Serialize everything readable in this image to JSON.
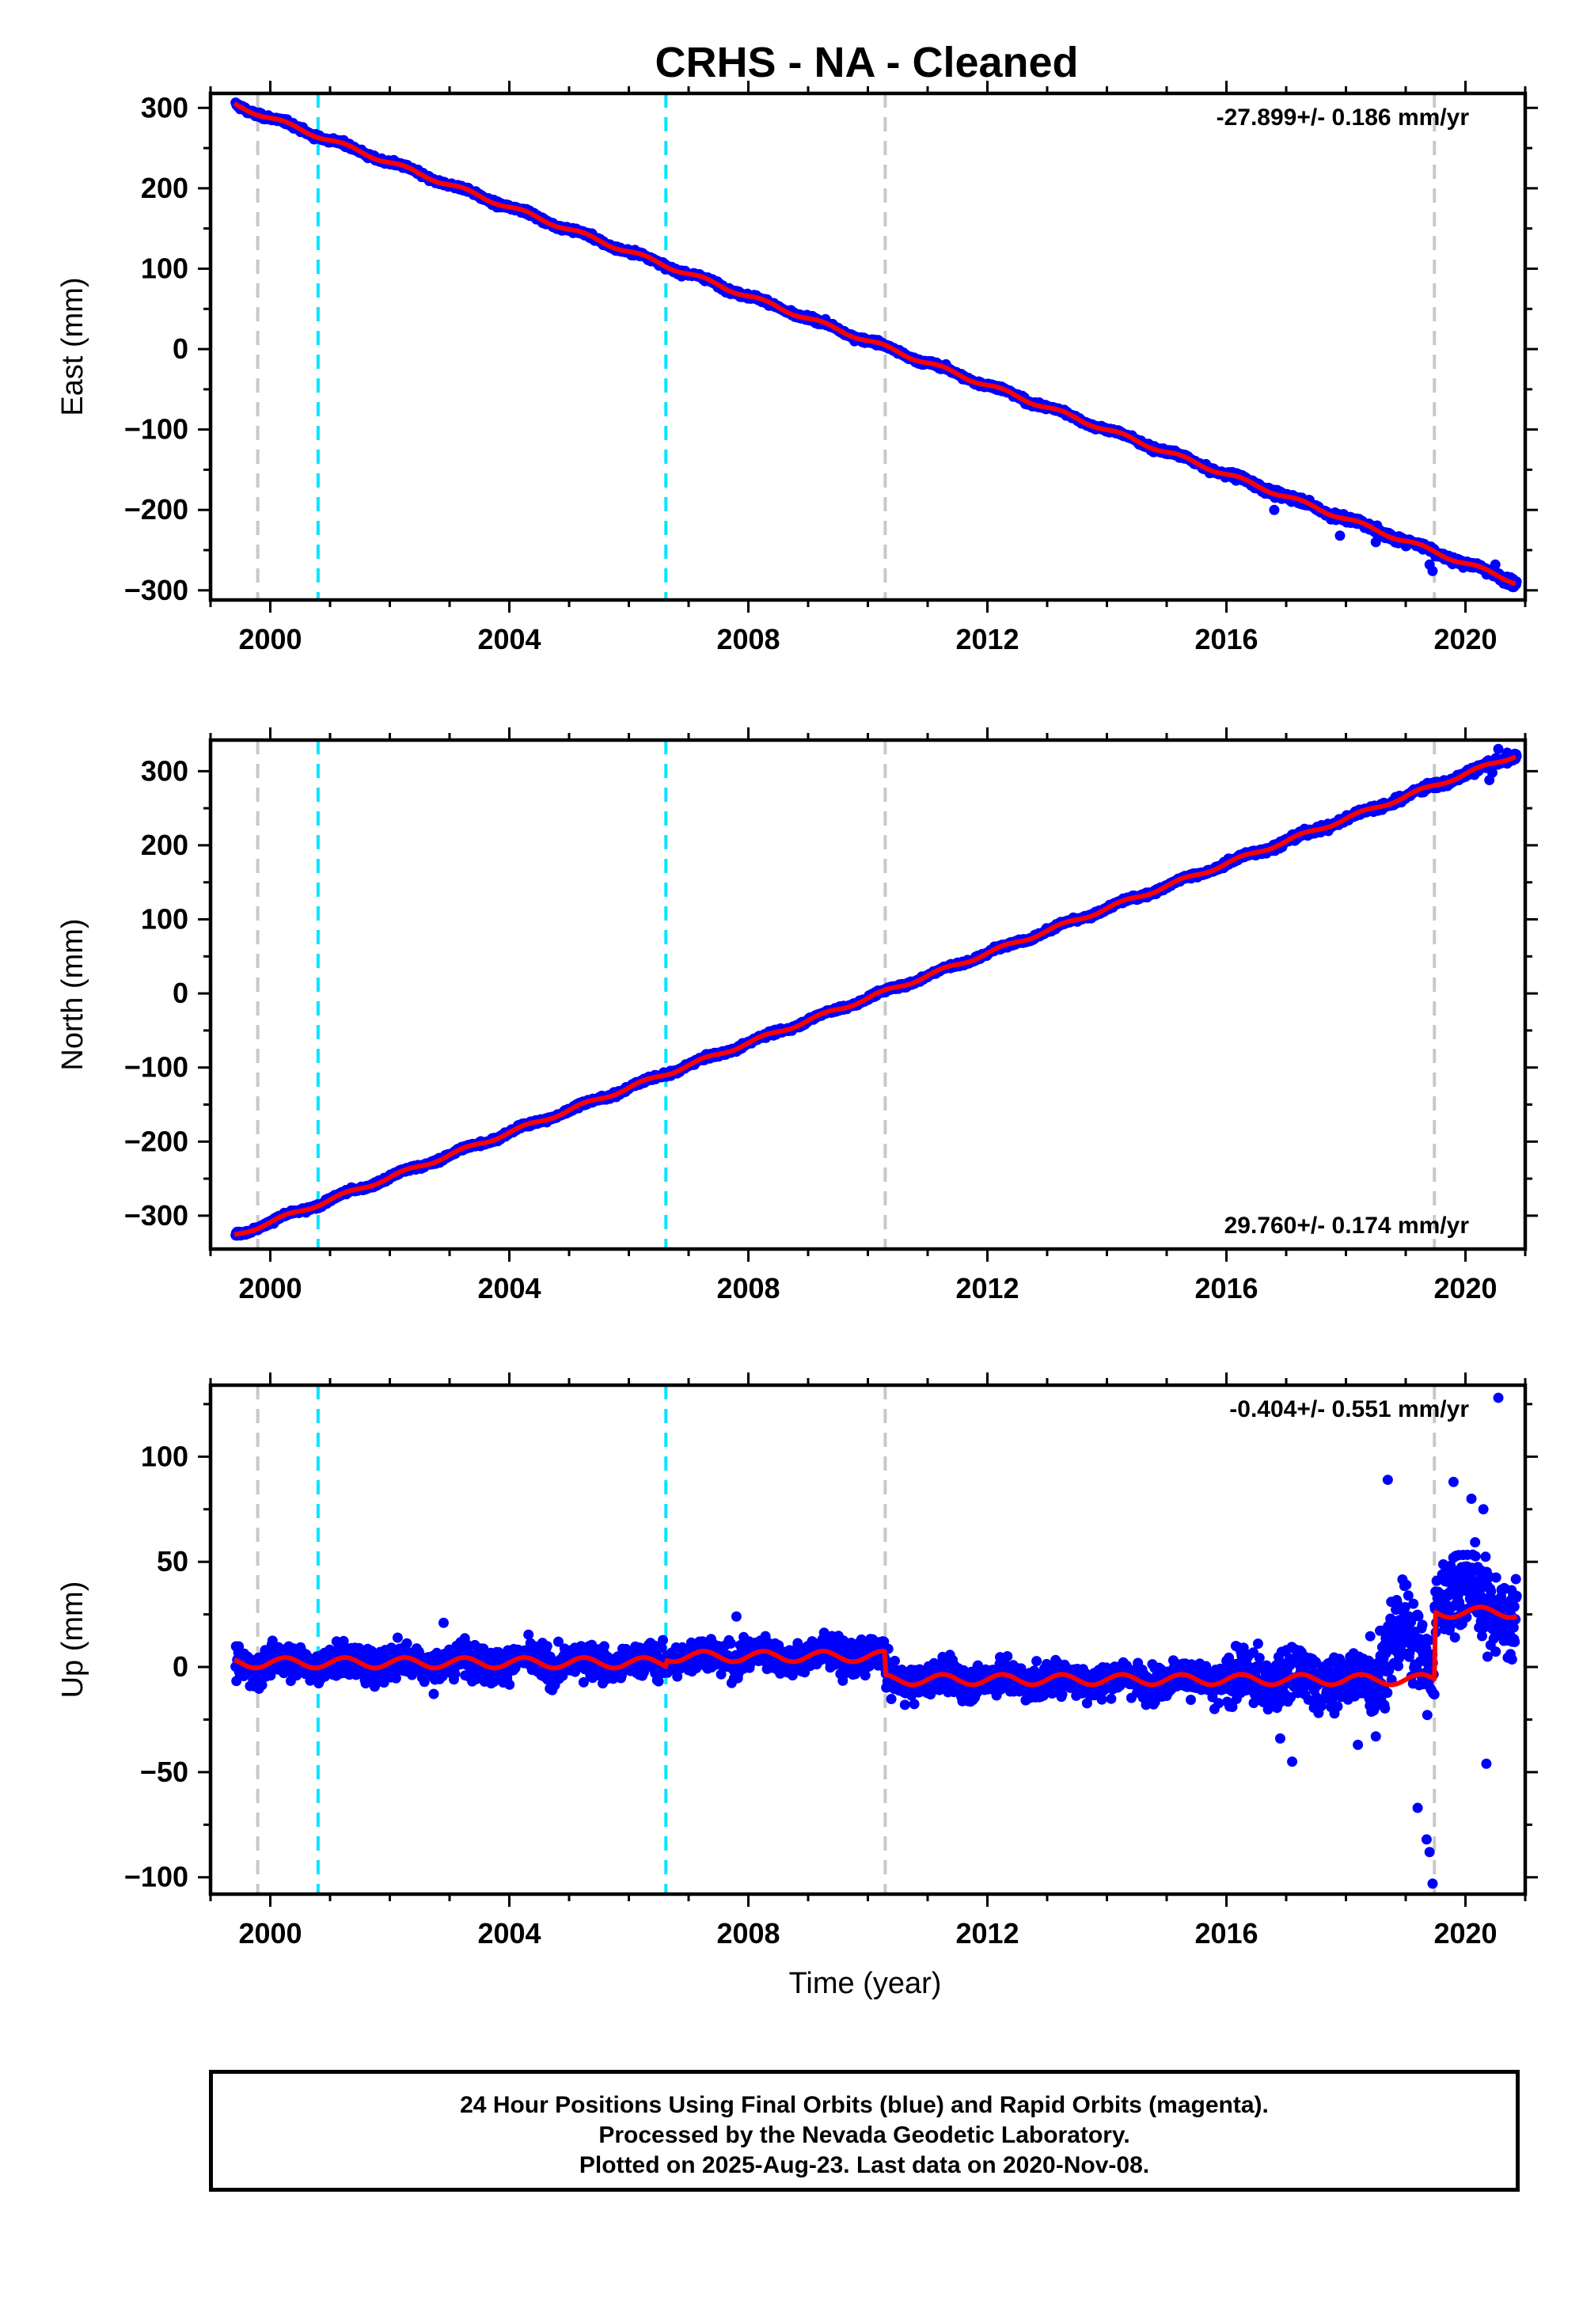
{
  "figure": {
    "title": "CRHS  - NA - Cleaned",
    "xlabel": "Time (year)",
    "footer": [
      "24 Hour Positions Using Final Orbits (blue) and Rapid Orbits (magenta).",
      "Processed by the Nevada Geodetic Laboratory.",
      "Plotted on 2025-Aug-23. Last data on 2020-Nov-08."
    ],
    "colors": {
      "final_orbits": "#0000ff",
      "model_fit": "#ff0000",
      "gray_events": "#c8c8c8",
      "cyan_events": "#00e5ff"
    }
  },
  "chart_data": [
    {
      "type": "scatter",
      "component": "East",
      "ylabel": "East (mm)",
      "rate_label": "-27.899+/- 0.186 mm/yr",
      "rate_position": "top-right",
      "xlim": [
        1999.0,
        2021.0
      ],
      "ylim": [
        -312,
        318
      ],
      "xticks": [
        2000,
        2004,
        2008,
        2012,
        2016,
        2020
      ],
      "yticks": [
        -300,
        -200,
        -100,
        0,
        100,
        200,
        300
      ],
      "ytick_labels": [
        "−300",
        "−200",
        "−100",
        "0",
        "100",
        "200",
        "300"
      ],
      "gray_lines": [
        1999.79,
        2010.29,
        2019.48
      ],
      "cyan_lines": [
        2000.8,
        2006.62
      ],
      "fit": {
        "x": [
          1999.4,
          2020.85
        ],
        "y": [
          304,
          -290
        ]
      },
      "outliers": [
        [
          2016.8,
          -200
        ],
        [
          2017.9,
          -232
        ],
        [
          2018.5,
          -240
        ],
        [
          2019.4,
          -268
        ],
        [
          2019.45,
          -276
        ],
        [
          2019.9,
          -262
        ],
        [
          2020.5,
          -268
        ],
        [
          2020.7,
          -283
        ],
        [
          2020.8,
          -296
        ]
      ]
    },
    {
      "type": "scatter",
      "component": "North",
      "ylabel": "North (mm)",
      "rate_label": "29.760+/- 0.174 mm/yr",
      "rate_position": "bottom-right",
      "xlim": [
        1999.0,
        2021.0
      ],
      "ylim": [
        -345,
        342
      ],
      "xticks": [
        2000,
        2004,
        2008,
        2012,
        2016,
        2020
      ],
      "yticks": [
        -300,
        -200,
        -100,
        0,
        100,
        200,
        300
      ],
      "ytick_labels": [
        "−300",
        "−200",
        "−100",
        "0",
        "100",
        "200",
        "300"
      ],
      "gray_lines": [
        1999.79,
        2010.29,
        2019.48
      ],
      "cyan_lines": [
        2000.8,
        2006.62
      ],
      "fit": {
        "x": [
          1999.4,
          2020.85
        ],
        "y": [
          -327,
          322
        ]
      },
      "outliers": [
        [
          2020.15,
          295
        ],
        [
          2020.3,
          305
        ],
        [
          2020.4,
          288
        ],
        [
          2020.45,
          298
        ],
        [
          2020.55,
          330
        ],
        [
          2020.7,
          325
        ]
      ]
    },
    {
      "type": "scatter",
      "component": "Up",
      "ylabel": "Up (mm)",
      "rate_label": "-0.404+/- 0.551 mm/yr",
      "rate_position": "top-right",
      "xlim": [
        1999.0,
        2021.0
      ],
      "ylim": [
        -108,
        134
      ],
      "xticks": [
        2000,
        2004,
        2008,
        2012,
        2016,
        2020
      ],
      "yticks": [
        -100,
        -50,
        0,
        50,
        100
      ],
      "ytick_labels": [
        "−100",
        "−50",
        "0",
        "50",
        "100"
      ],
      "gray_lines": [
        1999.79,
        2010.29,
        2019.48
      ],
      "cyan_lines": [
        2000.8,
        2006.62
      ],
      "fit_offsets": {
        "mean_before_2006.62": 2,
        "mean_2006.62_to_2010.29": 5,
        "mean_2010.29_to_2019.48": -6,
        "mean_after_2019.48": 26,
        "annual_amplitude": 2.5
      },
      "outliers": [
        [
          2019.35,
          -82
        ],
        [
          2019.4,
          -88
        ],
        [
          2019.45,
          -103
        ],
        [
          2019.2,
          -67
        ],
        [
          2020.35,
          -46
        ],
        [
          2020.55,
          128
        ],
        [
          2018.7,
          89
        ],
        [
          2019.8,
          88
        ],
        [
          2020.1,
          80
        ],
        [
          2020.3,
          75
        ],
        [
          2016.9,
          -34
        ],
        [
          2017.1,
          -45
        ],
        [
          2018.2,
          -37
        ],
        [
          2018.5,
          -33
        ],
        [
          2015.8,
          -20
        ],
        [
          2002.9,
          21
        ],
        [
          2007.8,
          24
        ]
      ]
    }
  ]
}
